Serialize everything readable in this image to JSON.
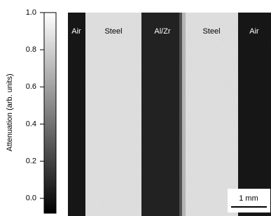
{
  "colorbar": {
    "label": "Attenuation (arb. units)",
    "lim": [
      -0.08,
      1.0
    ],
    "ticks": [
      {
        "value": 0.0,
        "label": "0.0"
      },
      {
        "value": 0.2,
        "label": "0.2"
      },
      {
        "value": 0.4,
        "label": "0.4"
      },
      {
        "value": 0.6,
        "label": "0.6"
      },
      {
        "value": 0.8,
        "label": "0.8"
      },
      {
        "value": 1.0,
        "label": "1.0"
      }
    ]
  },
  "image": {
    "regions": [
      "Air",
      "Steel",
      "Al/Zr",
      "Steel",
      "Air"
    ],
    "scale_bar": "1 mm"
  }
}
